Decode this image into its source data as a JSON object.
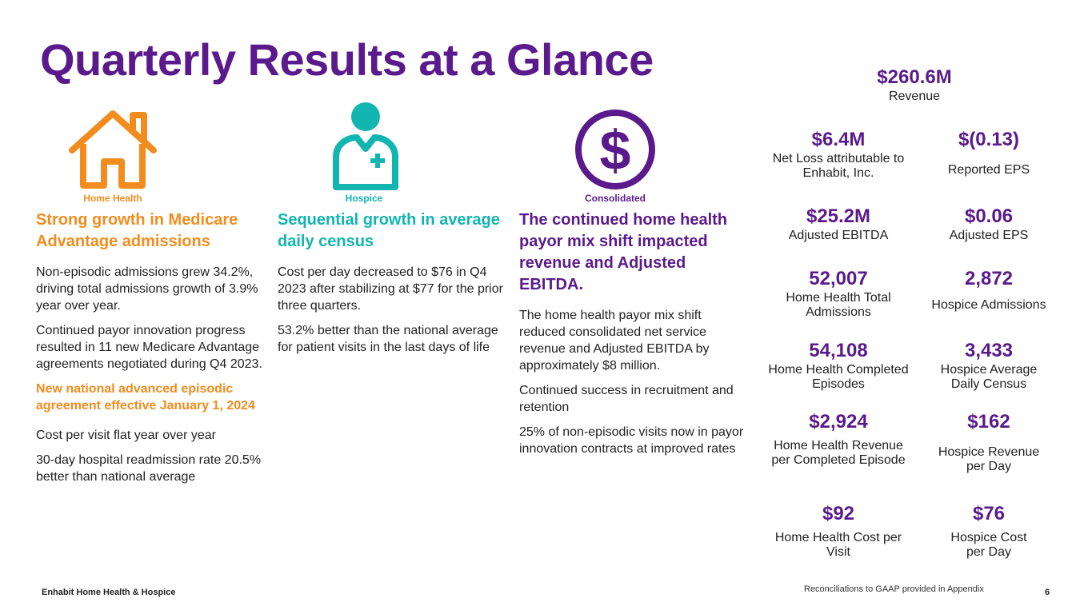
{
  "title": "Quarterly Results at a Glance",
  "colors": {
    "purple": "#5a1a8c",
    "orange": "#f28c1e",
    "teal": "#12b5b0"
  },
  "icons": [
    {
      "name": "house-icon",
      "label": "Home Health"
    },
    {
      "name": "nurse-icon",
      "label": "Hospice"
    },
    {
      "name": "dollar-icon",
      "label": "Consolidated"
    }
  ],
  "home_health": {
    "heading": "Strong growth in Medicare Advantage admissions",
    "p1": "Non-episodic admissions grew 34.2%, driving total admissions growth of 3.9% year over year.",
    "p2": "Continued payor innovation progress resulted in 11 new Medicare Advantage agreements negotiated during Q4 2023.",
    "highlight": "New national advanced episodic agreement effective January 1, 2024",
    "p3": "Cost per visit flat year over year",
    "p4": "30-day hospital readmission rate 20.5% better than national average"
  },
  "hospice": {
    "heading": "Sequential growth in average daily census",
    "p1": "Cost per day decreased to $76 in Q4 2023 after stabilizing at $77 for the prior three quarters.",
    "p2": "53.2% better than the national average for patient visits in the last days of life"
  },
  "consolidated": {
    "heading": "The continued home health payor mix shift impacted revenue and Adjusted EBITDA.",
    "p1": "The home health payor mix shift reduced consolidated net service revenue and Adjusted EBITDA by approximately $8 million.",
    "p2": "Continued success in recruitment and retention",
    "p3": "25% of non-episodic visits now in payor innovation contracts at improved rates"
  },
  "metrics": {
    "revenue": {
      "value": "$260.6M",
      "label": "Revenue"
    },
    "net_loss": {
      "value": "$6.4M",
      "label": "Net Loss attributable to Enhabit, Inc."
    },
    "reported_eps": {
      "value": "$(0.13)",
      "label": "Reported EPS"
    },
    "adj_ebitda": {
      "value": "$25.2M",
      "label": "Adjusted EBITDA"
    },
    "adj_eps": {
      "value": "$0.06",
      "label": "Adjusted EPS"
    },
    "hh_admissions": {
      "value": "52,007",
      "label": "Home Health Total Admissions"
    },
    "hospice_admissions": {
      "value": "2,872",
      "label": "Hospice Admissions"
    },
    "hh_episodes": {
      "value": "54,108",
      "label": "Home Health Completed Episodes"
    },
    "hospice_adc": {
      "value": "3,433",
      "label": "Hospice Average Daily Census"
    },
    "hh_rev_per_episode": {
      "value": "$2,924",
      "label": "Home Health Revenue per Completed Episode"
    },
    "hospice_rev_per_day": {
      "value": "$162",
      "label": "Hospice Revenue per Day"
    },
    "hh_cost_per_visit": {
      "value": "$92",
      "label": "Home Health Cost per Visit"
    },
    "hospice_cost_per_day": {
      "value": "$76",
      "label": "Hospice Cost per Day"
    }
  },
  "footer": {
    "company": "Enhabit Home Health & Hospice",
    "note": "Reconciliations to GAAP provided in Appendix",
    "page": "6"
  }
}
